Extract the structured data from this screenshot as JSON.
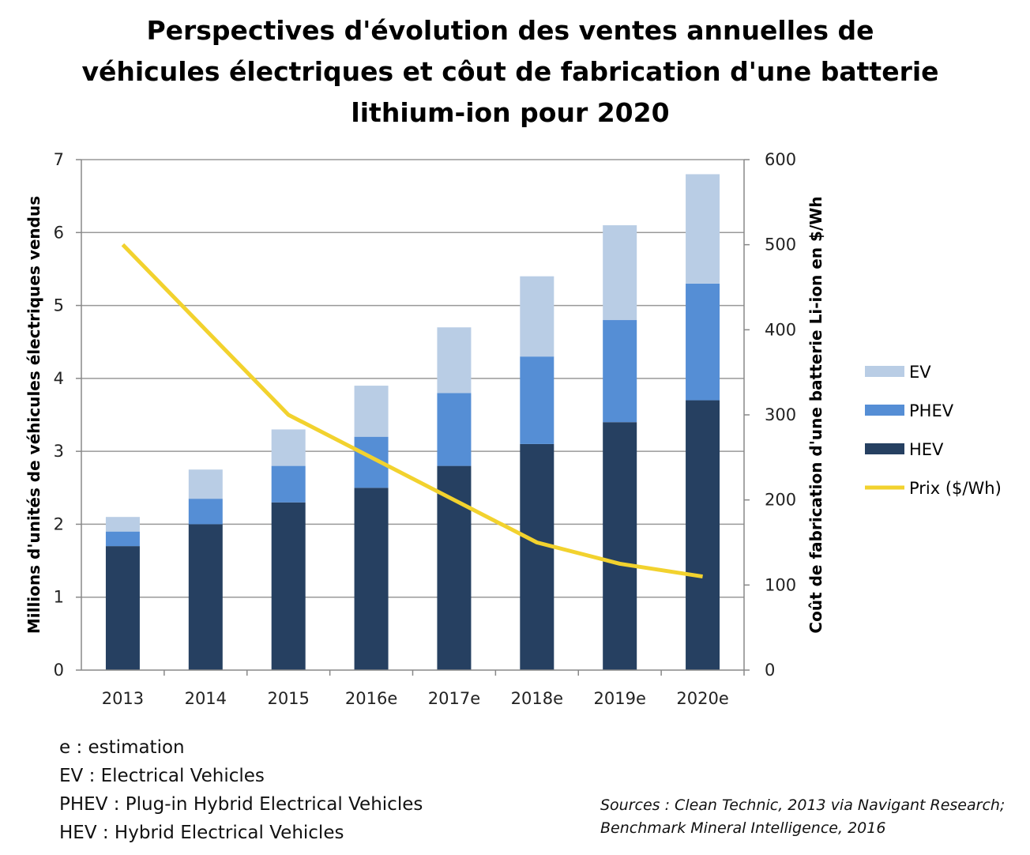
{
  "chart_data": {
    "type": "bar",
    "stacked": true,
    "title": [
      "Perspectives d'évolution des ventes annuelles de",
      "véhicules électriques et côut de fabrication d'une batterie",
      "lithium-ion pour 2020"
    ],
    "categories": [
      "2013",
      "2014",
      "2015",
      "2016e",
      "2017e",
      "2018e",
      "2019e",
      "2020e"
    ],
    "ylabel": "Millions d'unités de véhicules électriques vendus",
    "y2label": "Coût de fabrication d'une batterie Li-ion en $/Wh",
    "ylim": [
      0,
      7
    ],
    "yticks": [
      "0",
      "1",
      "2",
      "3",
      "4",
      "5",
      "6",
      "7"
    ],
    "y2lim": [
      0,
      600
    ],
    "y2ticks": [
      "0",
      "100",
      "200",
      "300",
      "400",
      "500",
      "600"
    ],
    "grid": true,
    "legend_position": "right",
    "series": [
      {
        "name": "HEV",
        "type": "bar",
        "axis": "left",
        "color": "#264061",
        "values": [
          1.7,
          2.0,
          2.3,
          2.5,
          2.8,
          3.1,
          3.4,
          3.7
        ]
      },
      {
        "name": "PHEV",
        "type": "bar",
        "axis": "left",
        "color": "#558ED5",
        "values": [
          0.2,
          0.35,
          0.5,
          0.7,
          1.0,
          1.2,
          1.4,
          1.6
        ]
      },
      {
        "name": "EV",
        "type": "bar",
        "axis": "left",
        "color": "#B9CDE5",
        "values": [
          0.2,
          0.4,
          0.5,
          0.7,
          0.9,
          1.1,
          1.3,
          1.5
        ]
      },
      {
        "name": "Prix ($/Wh)",
        "type": "line",
        "axis": "right",
        "color": "#F2D22E",
        "values": [
          500,
          400,
          300,
          250,
          200,
          150,
          125,
          110
        ]
      }
    ],
    "legend_order": [
      "EV",
      "PHEV",
      "HEV",
      "Prix ($/Wh)"
    ]
  },
  "notes": [
    "e : estimation",
    "EV : Electrical Vehicles",
    "PHEV : Plug-in Hybrid Electrical Vehicles",
    "HEV : Hybrid Electrical Vehicles"
  ],
  "sources": [
    "Sources : Clean Technic, 2013 via Navigant Research;",
    "Benchmark Mineral Intelligence, 2016"
  ]
}
